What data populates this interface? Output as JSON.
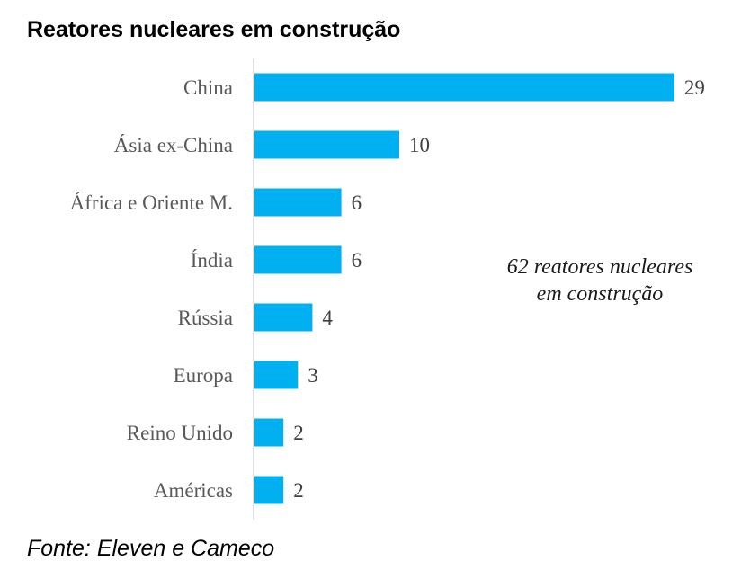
{
  "chart_data": {
    "type": "bar",
    "orientation": "horizontal",
    "title": "Reatores nucleares em construção",
    "categories": [
      "China",
      "Ásia ex-China",
      "África e Oriente M.",
      "Índia",
      "Rússia",
      "Europa",
      "Reino Unido",
      "Américas"
    ],
    "values": [
      29,
      10,
      6,
      6,
      4,
      3,
      2,
      2
    ],
    "xlim": [
      0,
      30
    ],
    "xlabel": "",
    "ylabel": "",
    "grid": false,
    "annotation": [
      "62 reatores nucleares",
      "em construção"
    ],
    "source": "Fonte: Eleven e Cameco",
    "bar_color": "#00B0F0",
    "axis_color": "#D9D9D9"
  }
}
